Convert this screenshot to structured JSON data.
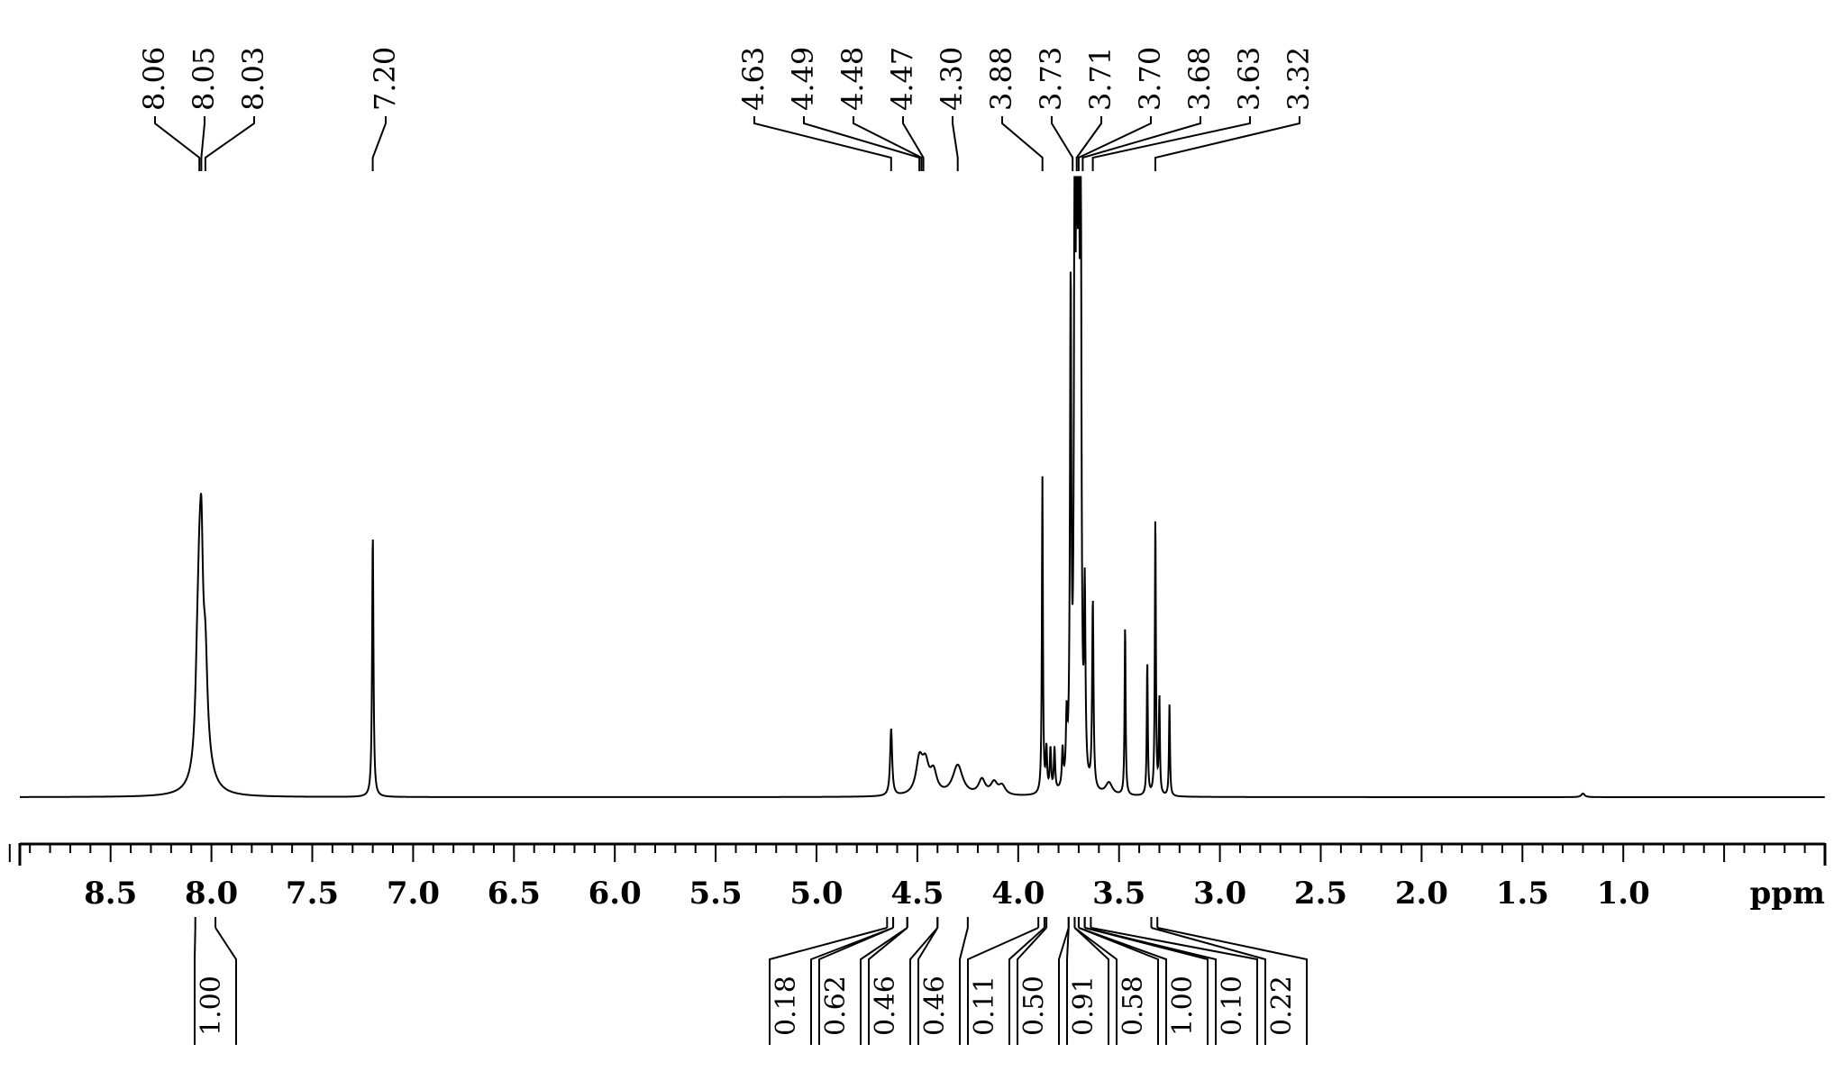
{
  "chart_data": {
    "type": "line",
    "xlabel": "ppm",
    "xlim": [
      8.95,
      0.0
    ],
    "x_reversed": true,
    "grid": false,
    "x_ticks": [
      {
        "value": 8.5,
        "label": "8.5"
      },
      {
        "value": 8.0,
        "label": "8.0"
      },
      {
        "value": 7.5,
        "label": "7.5"
      },
      {
        "value": 7.0,
        "label": "7.0"
      },
      {
        "value": 6.5,
        "label": "6.5"
      },
      {
        "value": 6.0,
        "label": "6.0"
      },
      {
        "value": 5.5,
        "label": "5.5"
      },
      {
        "value": 5.0,
        "label": "5.0"
      },
      {
        "value": 4.5,
        "label": "4.5"
      },
      {
        "value": 4.0,
        "label": "4.0"
      },
      {
        "value": 3.5,
        "label": "3.5"
      },
      {
        "value": 3.0,
        "label": "3.0"
      },
      {
        "value": 2.5,
        "label": "2.5"
      },
      {
        "value": 2.0,
        "label": "2.0"
      },
      {
        "value": 1.5,
        "label": "1.5"
      },
      {
        "value": 1.0,
        "label": "1.0"
      }
    ],
    "peak_picks": [
      {
        "ppm": 8.06,
        "label": "8.06"
      },
      {
        "ppm": 8.05,
        "label": "8.05"
      },
      {
        "ppm": 8.03,
        "label": "8.03"
      },
      {
        "ppm": 7.2,
        "label": "7.20"
      },
      {
        "ppm": 4.63,
        "label": "4.63"
      },
      {
        "ppm": 4.49,
        "label": "4.49"
      },
      {
        "ppm": 4.48,
        "label": "4.48"
      },
      {
        "ppm": 4.47,
        "label": "4.47"
      },
      {
        "ppm": 4.3,
        "label": "4.30"
      },
      {
        "ppm": 3.88,
        "label": "3.88"
      },
      {
        "ppm": 3.73,
        "label": "3.73"
      },
      {
        "ppm": 3.71,
        "label": "3.71"
      },
      {
        "ppm": 3.7,
        "label": "3.70"
      },
      {
        "ppm": 3.68,
        "label": "3.68"
      },
      {
        "ppm": 3.63,
        "label": "3.63"
      },
      {
        "ppm": 3.32,
        "label": "3.32"
      }
    ],
    "integrals": [
      {
        "from": 8.08,
        "to": 7.98,
        "value": "1.00"
      },
      {
        "from": 4.65,
        "to": 4.62,
        "value": "0.18"
      },
      {
        "from": 4.62,
        "to": 4.55,
        "value": "0.62"
      },
      {
        "from": 4.55,
        "to": 4.4,
        "value": "0.46"
      },
      {
        "from": 4.4,
        "to": 4.25,
        "value": "0.46"
      },
      {
        "from": 3.9,
        "to": 3.87,
        "value": "0.11"
      },
      {
        "from": 3.86,
        "to": 3.75,
        "value": "0.50"
      },
      {
        "from": 3.75,
        "to": 3.72,
        "value": "0.91"
      },
      {
        "from": 3.72,
        "to": 3.7,
        "value": "0.58"
      },
      {
        "from": 3.7,
        "to": 3.67,
        "value": "1.00"
      },
      {
        "from": 3.67,
        "to": 3.64,
        "value": "0.10"
      },
      {
        "from": 3.34,
        "to": 3.31,
        "value": "0.22"
      }
    ],
    "spectrum_peaks": [
      {
        "ppm": 8.07,
        "height": 0.12,
        "width": 0.012
      },
      {
        "ppm": 8.06,
        "height": 0.16,
        "width": 0.01
      },
      {
        "ppm": 8.05,
        "height": 0.28,
        "width": 0.01
      },
      {
        "ppm": 8.03,
        "height": 0.14,
        "width": 0.012
      },
      {
        "ppm": 8.04,
        "height": 0.07,
        "width": 0.04
      },
      {
        "ppm": 7.2,
        "height": 0.43,
        "width": 0.004
      },
      {
        "ppm": 4.63,
        "height": 0.11,
        "width": 0.006
      },
      {
        "ppm": 4.49,
        "height": 0.055,
        "width": 0.02
      },
      {
        "ppm": 4.46,
        "height": 0.045,
        "width": 0.02
      },
      {
        "ppm": 4.42,
        "height": 0.035,
        "width": 0.02
      },
      {
        "ppm": 4.3,
        "height": 0.05,
        "width": 0.03
      },
      {
        "ppm": 4.18,
        "height": 0.025,
        "width": 0.02
      },
      {
        "ppm": 4.12,
        "height": 0.02,
        "width": 0.02
      },
      {
        "ppm": 4.08,
        "height": 0.015,
        "width": 0.02
      },
      {
        "ppm": 3.88,
        "height": 0.52,
        "width": 0.003
      },
      {
        "ppm": 3.86,
        "height": 0.07,
        "width": 0.004
      },
      {
        "ppm": 3.84,
        "height": 0.07,
        "width": 0.004
      },
      {
        "ppm": 3.82,
        "height": 0.07,
        "width": 0.004
      },
      {
        "ppm": 3.78,
        "height": 0.06,
        "width": 0.004
      },
      {
        "ppm": 3.76,
        "height": 0.1,
        "width": 0.004
      },
      {
        "ppm": 3.74,
        "height": 0.8,
        "width": 0.004
      },
      {
        "ppm": 3.72,
        "height": 1.0,
        "width": 0.004
      },
      {
        "ppm": 3.71,
        "height": 1.0,
        "width": 0.004
      },
      {
        "ppm": 3.7,
        "height": 1.0,
        "width": 0.004
      },
      {
        "ppm": 3.69,
        "height": 0.96,
        "width": 0.004
      },
      {
        "ppm": 3.67,
        "height": 0.3,
        "width": 0.004
      },
      {
        "ppm": 3.63,
        "height": 0.31,
        "width": 0.004
      },
      {
        "ppm": 3.55,
        "height": 0.02,
        "width": 0.02
      },
      {
        "ppm": 3.47,
        "height": 0.28,
        "width": 0.003
      },
      {
        "ppm": 3.36,
        "height": 0.22,
        "width": 0.003
      },
      {
        "ppm": 3.32,
        "height": 0.46,
        "width": 0.003
      },
      {
        "ppm": 3.3,
        "height": 0.16,
        "width": 0.003
      },
      {
        "ppm": 3.25,
        "height": 0.15,
        "width": 0.003
      },
      {
        "ppm": 1.2,
        "height": 0.006,
        "width": 0.01
      }
    ]
  }
}
